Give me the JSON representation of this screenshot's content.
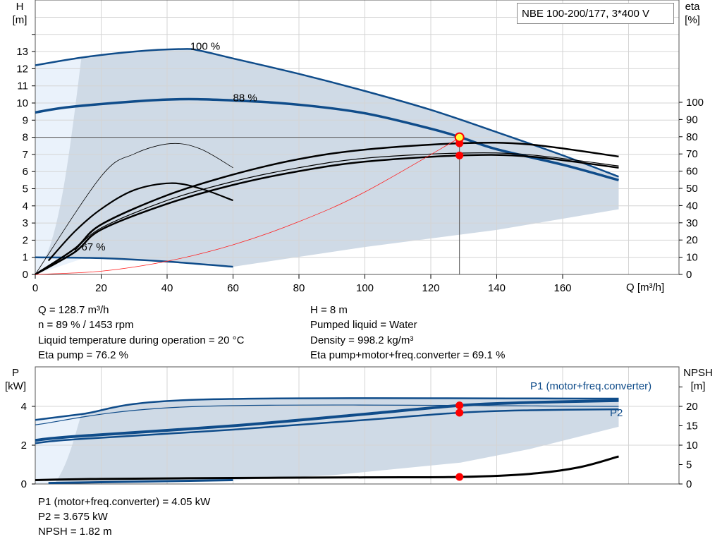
{
  "title": "NBE 100-200/177, 3*400 V",
  "chart_data": [
    {
      "type": "line",
      "xlabel": "Q [m³/h]",
      "ylabel_left": "H\n[m]",
      "ylabel_right": "eta\n[%]",
      "xlim": [
        0,
        196
      ],
      "ylim_left": [
        0,
        16
      ],
      "ylim_right": [
        0,
        160
      ],
      "x_ticks": [
        0,
        20,
        40,
        60,
        80,
        100,
        120,
        140,
        160
      ],
      "y_ticks_left": [
        0,
        1,
        2,
        3,
        4,
        5,
        6,
        7,
        8,
        9,
        10,
        11,
        12,
        13
      ],
      "y_ticks_right": [
        0,
        10,
        20,
        30,
        40,
        50,
        60,
        70,
        80,
        90,
        100
      ],
      "grid": true,
      "curve_labels": [
        "100 %",
        "88 %",
        "67 %"
      ],
      "head_curves": [
        {
          "label_index": 0,
          "points": [
            [
              0,
              12.2
            ],
            [
              14,
              12.65
            ],
            [
              30,
              13.0
            ],
            [
              45,
              13.15
            ],
            [
              50,
              13.05
            ],
            [
              60,
              12.6
            ],
            [
              80,
              11.7
            ],
            [
              100,
              10.7
            ],
            [
              120,
              9.6
            ],
            [
              140,
              8.3
            ],
            [
              160,
              6.95
            ],
            [
              177,
              5.7
            ]
          ]
        },
        {
          "label_index": 1,
          "points": [
            [
              0,
              9.45
            ],
            [
              12,
              9.8
            ],
            [
              40,
              10.2
            ],
            [
              60,
              10.15
            ],
            [
              80,
              9.9
            ],
            [
              100,
              9.4
            ],
            [
              120,
              8.5
            ],
            [
              129,
              8.0
            ],
            [
              140,
              7.3
            ],
            [
              160,
              6.4
            ],
            [
              177,
              5.5
            ]
          ]
        },
        {
          "label_index": 2,
          "points": [
            [
              0,
              1.0
            ],
            [
              20,
              0.95
            ],
            [
              40,
              0.75
            ],
            [
              60,
              0.45
            ]
          ]
        }
      ],
      "eta_curves_percent": [
        {
          "points": [
            [
              0,
              0
            ],
            [
              20,
              57
            ],
            [
              30,
              70
            ],
            [
              41,
              76
            ],
            [
              50,
              73
            ],
            [
              60,
              62
            ]
          ]
        },
        {
          "points": [
            [
              4,
              8
            ],
            [
              12,
              25
            ],
            [
              20,
              38
            ],
            [
              30,
              49
            ],
            [
              41,
              53
            ],
            [
              50,
              50
            ],
            [
              60,
              43
            ]
          ]
        },
        {
          "points": [
            [
              0,
              0
            ],
            [
              12,
              15
            ],
            [
              20,
              29
            ],
            [
              40,
              46
            ],
            [
              60,
              58
            ],
            [
              80,
              67
            ],
            [
              100,
              72.5
            ],
            [
              129,
              76.2
            ],
            [
              150,
              75.5
            ],
            [
              177,
              68.5
            ]
          ]
        },
        {
          "points": [
            [
              0,
              0
            ],
            [
              12,
              13
            ],
            [
              20,
              26
            ],
            [
              40,
              41
            ],
            [
              60,
              52
            ],
            [
              80,
              60
            ],
            [
              100,
              65.5
            ],
            [
              129,
              69.1
            ],
            [
              150,
              68.5
            ],
            [
              177,
              62
            ]
          ]
        },
        {
          "points": [
            [
              12,
              14
            ],
            [
              20,
              27
            ],
            [
              40,
              43
            ],
            [
              60,
              54
            ],
            [
              80,
              62
            ],
            [
              100,
              67.5
            ],
            [
              129,
              70.5
            ],
            [
              150,
              69.5
            ],
            [
              177,
              63
            ]
          ]
        }
      ],
      "system_curve": {
        "type": "quadratic",
        "points": [
          [
            0,
            0
          ],
          [
            20,
            0.19
          ],
          [
            40,
            0.77
          ],
          [
            60,
            1.73
          ],
          [
            80,
            3.08
          ],
          [
            100,
            4.81
          ],
          [
            129,
            8.0
          ]
        ]
      },
      "operating_point": {
        "Q": 128.7,
        "H": 8,
        "eta_pump": 76.2,
        "eta_total": 69.1
      },
      "colors": {
        "curve": "#0f4c8a",
        "area": "#cfdae6",
        "area_light": "#eaf2fb",
        "system": "#ff2020",
        "point": "#ff0000",
        "point_highlight": "#ffff40"
      }
    },
    {
      "type": "line",
      "xlim": [
        0,
        196
      ],
      "ylabel_left": "P\n[kW]",
      "ylabel_right": "NPSH\n[m]",
      "ylim_left": [
        0,
        6
      ],
      "ylim_right": [
        0,
        30
      ],
      "y_ticks_left": [
        0,
        2,
        4
      ],
      "y_ticks_right": [
        0,
        5,
        10,
        15,
        20
      ],
      "grid": true,
      "series_labels": [
        "P1 (motor+freq.converter)",
        "P2"
      ],
      "power_curves": [
        {
          "points": [
            [
              0,
              3.3
            ],
            [
              14,
              3.6
            ],
            [
              50,
              4.35
            ],
            [
              177,
              4.4
            ]
          ]
        },
        {
          "points": [
            [
              0,
              3.05
            ],
            [
              50,
              4.0
            ],
            [
              177,
              4.0
            ]
          ]
        },
        {
          "label_index": 0,
          "points": [
            [
              0,
              2.25
            ],
            [
              12,
              2.45
            ],
            [
              60,
              3.0
            ],
            [
              100,
              3.6
            ],
            [
              129,
              4.05
            ],
            [
              150,
              4.2
            ],
            [
              177,
              4.3
            ]
          ]
        },
        {
          "label_index": 1,
          "points": [
            [
              0,
              2.1
            ],
            [
              12,
              2.3
            ],
            [
              60,
              2.8
            ],
            [
              100,
              3.3
            ],
            [
              129,
              3.675
            ],
            [
              150,
              3.8
            ],
            [
              177,
              3.85
            ]
          ]
        }
      ],
      "npsh_curve": {
        "points": [
          [
            0,
            1.0
          ],
          [
            20,
            1.3
          ],
          [
            60,
            1.55
          ],
          [
            100,
            1.7
          ],
          [
            129,
            1.82
          ],
          [
            150,
            2.6
          ],
          [
            165,
            4.3
          ],
          [
            177,
            7.1
          ]
        ]
      },
      "operating_point": {
        "Q": 128.7,
        "P1": 4.05,
        "P2": 3.675,
        "NPSH": 1.82
      }
    }
  ],
  "readout_top": {
    "q": "Q = 128.7 m³/h",
    "n": "n = 89 % / 1453 rpm",
    "temp": "Liquid temperature during operation = 20 °C",
    "eta_pump": "Eta pump = 76.2 %",
    "h": "H = 8 m",
    "liquid": "Pumped liquid = Water",
    "density": "Density = 998.2 kg/m³",
    "eta_total": "Eta pump+motor+freq.converter = 69.1 %"
  },
  "readout_bottom": {
    "p1": "P1 (motor+freq.converter) = 4.05 kW",
    "p2": "P2 = 3.675 kW",
    "npsh": "NPSH = 1.82 m"
  }
}
